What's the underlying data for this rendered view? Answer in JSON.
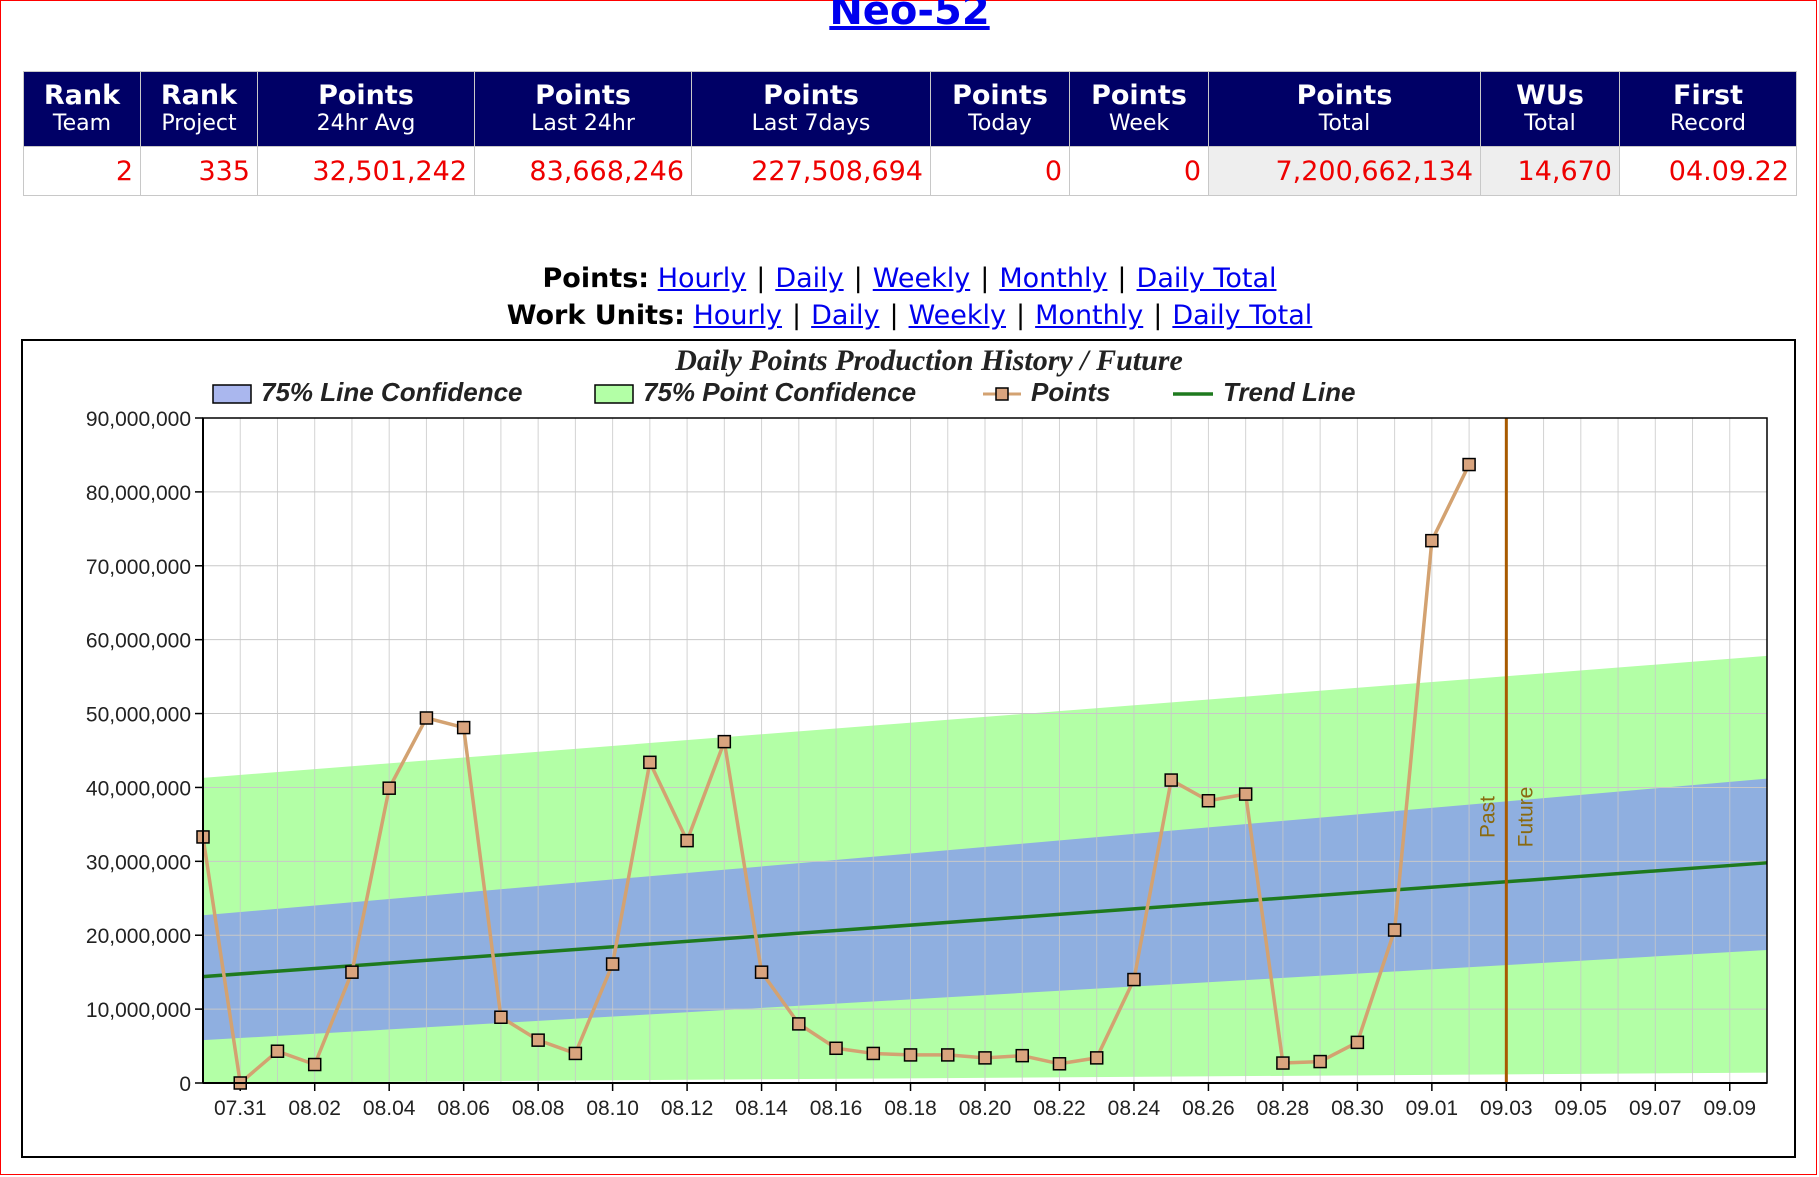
{
  "title": "Neo-52",
  "stats": {
    "headers": [
      {
        "top": "Rank",
        "bottom": "Team"
      },
      {
        "top": "Rank",
        "bottom": "Project"
      },
      {
        "top": "Points",
        "bottom": "24hr Avg"
      },
      {
        "top": "Points",
        "bottom": "Last 24hr"
      },
      {
        "top": "Points",
        "bottom": "Last 7days"
      },
      {
        "top": "Points",
        "bottom": "Today"
      },
      {
        "top": "Points",
        "bottom": "Week"
      },
      {
        "top": "Points",
        "bottom": "Total"
      },
      {
        "top": "WUs",
        "bottom": "Total"
      },
      {
        "top": "First",
        "bottom": "Record"
      }
    ],
    "values": [
      "2",
      "335",
      "32,501,242",
      "83,668,246",
      "227,508,694",
      "0",
      "0",
      "7,200,662,134",
      "14,670",
      "04.09.22"
    ]
  },
  "links": {
    "points_label": "Points:",
    "workunits_label": "Work Units:",
    "separator": "|",
    "items": [
      "Hourly",
      "Daily",
      "Weekly",
      "Monthly",
      "Daily Total"
    ]
  },
  "chart_data": {
    "type": "line",
    "title": "Daily Points Production History / Future",
    "legend": [
      {
        "label": "75% Line Confidence",
        "color": "#8899dd",
        "kind": "area"
      },
      {
        "label": "75% Point Confidence",
        "color": "#b3ffa6",
        "kind": "area"
      },
      {
        "label": "Points",
        "color": "#cc9966",
        "kind": "line-marker"
      },
      {
        "label": "Trend Line",
        "color": "#1e7a1e",
        "kind": "line"
      }
    ],
    "legend_position": "top",
    "colors": {
      "points_line": "#d3a271",
      "marker_fill": "#d9a47e",
      "trend": "#1e7a1e",
      "line_conf": "#8fafe0",
      "point_conf": "#b3ffa6",
      "past_future": "#a85a00",
      "grid": "#c8c8c8"
    },
    "x_labels": [
      "07.31",
      "08.02",
      "08.04",
      "08.06",
      "08.08",
      "08.10",
      "08.12",
      "08.14",
      "08.16",
      "08.18",
      "08.20",
      "08.22",
      "08.24",
      "08.26",
      "08.28",
      "08.30",
      "09.01",
      "09.03",
      "09.05",
      "09.07",
      "09.09"
    ],
    "x_range": [
      "07.30",
      "09.10"
    ],
    "ylim": [
      0,
      90000000
    ],
    "y_ticks": [
      "0",
      "10,000,000",
      "20,000,000",
      "30,000,000",
      "40,000,000",
      "50,000,000",
      "60,000,000",
      "70,000,000",
      "80,000,000",
      "90,000,000"
    ],
    "grid": true,
    "points": {
      "dates": [
        "07.30",
        "07.31",
        "08.01",
        "08.02",
        "08.03",
        "08.04",
        "08.05",
        "08.06",
        "08.07",
        "08.08",
        "08.09",
        "08.10",
        "08.11",
        "08.12",
        "08.13",
        "08.14",
        "08.15",
        "08.16",
        "08.17",
        "08.18",
        "08.19",
        "08.20",
        "08.21",
        "08.22",
        "08.23",
        "08.24",
        "08.25",
        "08.26",
        "08.27",
        "08.28",
        "08.29",
        "08.30",
        "08.31",
        "09.01",
        "09.02"
      ],
      "values": [
        33300000,
        0,
        4300000,
        2500000,
        15000000,
        39900000,
        49400000,
        48100000,
        8900000,
        5800000,
        4000000,
        16100000,
        43400000,
        32800000,
        46200000,
        15000000,
        8000000,
        4700000,
        4000000,
        3800000,
        3800000,
        3400000,
        3700000,
        2600000,
        3400000,
        14000000,
        41000000,
        38200000,
        39100000,
        2700000,
        2900000,
        5500000,
        20700000,
        73400000,
        83700000
      ]
    },
    "trend": {
      "start_date": "07.30",
      "start": 14400000,
      "end_date": "09.10",
      "end": 29800000
    },
    "line_confidence": {
      "lower_start": 5800000,
      "lower_end": 18000000,
      "upper_start": 22700000,
      "upper_end": 41200000
    },
    "point_confidence": {
      "lower_start": 0,
      "lower_end": 1400000,
      "upper_start": 41300000,
      "upper_end": 57800000
    },
    "divider": {
      "date": "09.03",
      "left_label": "Past",
      "right_label": "Future"
    }
  }
}
